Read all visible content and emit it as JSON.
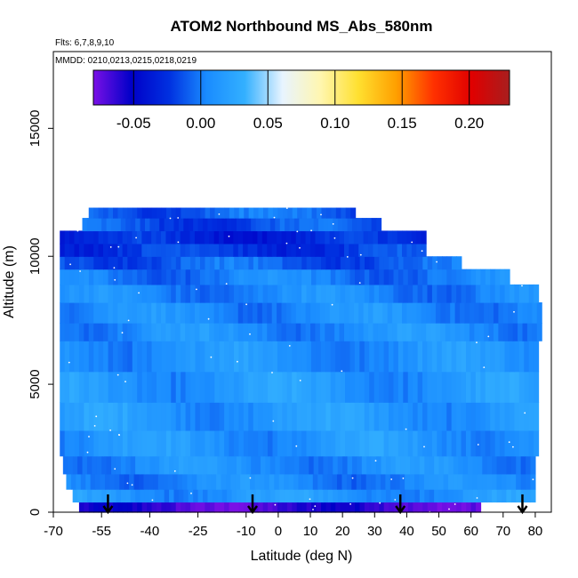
{
  "chart_data": {
    "type": "heatmap",
    "title": "ATOM2 Northbound MS_Abs_580nm",
    "subtitle_flights": "Flts: 6,7,8,9,10",
    "subtitle_dates": "MMDD: 0210,0213,0215,0218,0219",
    "xlabel": "Latitude (deg N)",
    "ylabel": "Altitude (m)",
    "xlim": [
      -70,
      85
    ],
    "ylim": [
      0,
      18000
    ],
    "x_ticks": [
      -70,
      -55,
      -40,
      -25,
      -10,
      0,
      10,
      20,
      30,
      40,
      50,
      60,
      70,
      80
    ],
    "y_ticks": [
      0,
      5000,
      10000,
      15000
    ],
    "colorbar": {
      "range": [
        -0.08,
        0.23
      ],
      "ticks": [
        -0.05,
        0.0,
        0.05,
        0.1,
        0.15,
        0.2
      ],
      "tick_labels": [
        "-0.05",
        "0.00",
        "0.05",
        "0.10",
        "0.15",
        "0.20"
      ],
      "stops": [
        "#7a10e6",
        "#0000c8",
        "#0030e0",
        "#1a8cff",
        "#33b0ff",
        "#e8f4ff",
        "#fff6b0",
        "#ffe030",
        "#ffa000",
        "#ff3000",
        "#e00000",
        "#a81e1e"
      ]
    },
    "profile_latitudes": [
      -53,
      -8,
      38,
      76
    ],
    "rows": [
      {
        "z0": 0,
        "z1": 400,
        "x0": -62,
        "x1": 63,
        "v": -0.066
      },
      {
        "z0": 400,
        "z1": 900,
        "x0": -64,
        "x1": 80,
        "v": 0.012
      },
      {
        "z0": 900,
        "z1": 1500,
        "x0": -66,
        "x1": 80,
        "v": 0.004
      },
      {
        "z0": 1500,
        "z1": 2200,
        "x0": -67,
        "x1": 80,
        "v": 0.007
      },
      {
        "z0": 2200,
        "z1": 3200,
        "x0": -68,
        "x1": 81,
        "v": 0.012
      },
      {
        "z0": 3200,
        "z1": 4300,
        "x0": -68,
        "x1": 81,
        "v": 0.014
      },
      {
        "z0": 4300,
        "z1": 5500,
        "x0": -68,
        "x1": 81,
        "v": 0.013
      },
      {
        "z0": 5500,
        "z1": 6700,
        "x0": -68,
        "x1": 81,
        "v": 0.01
      },
      {
        "z0": 6700,
        "z1": 7400,
        "x0": -68,
        "x1": 82,
        "v": 0.008
      },
      {
        "z0": 7400,
        "z1": 8200,
        "x0": -68,
        "x1": 82,
        "v": 0.006
      },
      {
        "z0": 8200,
        "z1": 8900,
        "x0": -68,
        "x1": 81,
        "v": 0.004
      },
      {
        "z0": 8900,
        "z1": 9500,
        "x0": -68,
        "x1": 72,
        "v": 0.0
      },
      {
        "z0": 9500,
        "z1": 10000,
        "x0": -68,
        "x1": 57,
        "v": -0.01
      },
      {
        "z0": 10000,
        "z1": 10500,
        "x0": -68,
        "x1": 46,
        "v": -0.022
      },
      {
        "z0": 10500,
        "z1": 11000,
        "x0": -68,
        "x1": 46,
        "v": -0.03
      },
      {
        "z0": 11000,
        "z1": 11500,
        "x0": -61,
        "x1": 32,
        "v": -0.015
      },
      {
        "z0": 11500,
        "z1": 11900,
        "x0": -59,
        "x1": 24,
        "v": -0.008
      }
    ]
  }
}
